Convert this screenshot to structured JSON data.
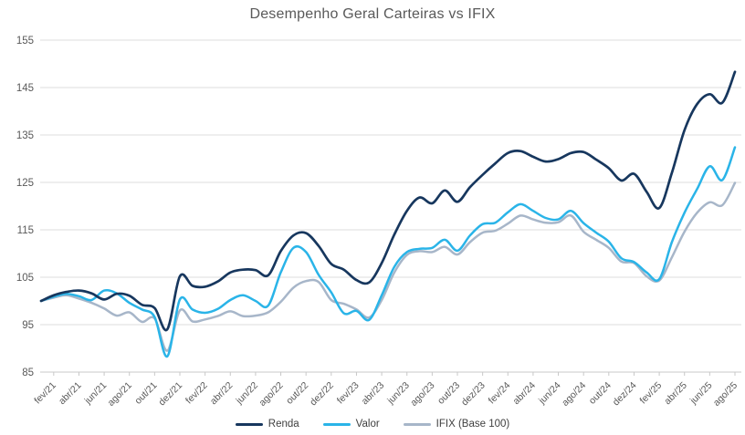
{
  "chart_data": {
    "type": "line",
    "title": "Desempenho Geral Carteiras vs IFIX",
    "xlabel": "",
    "ylabel": "",
    "ylim": [
      85,
      155
    ],
    "y_ticks": [
      85,
      95,
      105,
      115,
      125,
      135,
      145,
      155
    ],
    "grid": "horizontal",
    "legend_position": "bottom",
    "x_tick_start_index": 1,
    "x_tick_step": 2,
    "x_months": [
      "jan/21",
      "fev/21",
      "mar/21",
      "abr/21",
      "mai/21",
      "jun/21",
      "jul/21",
      "ago/21",
      "set/21",
      "out/21",
      "nov/21",
      "dez/21",
      "jan/22",
      "fev/22",
      "mar/22",
      "abr/22",
      "mai/22",
      "jun/22",
      "jul/22",
      "ago/22",
      "set/22",
      "out/22",
      "nov/22",
      "dez/22",
      "jan/23",
      "fev/23",
      "mar/23",
      "abr/23",
      "mai/23",
      "jun/23",
      "jul/23",
      "ago/23",
      "set/23",
      "out/23",
      "nov/23",
      "dez/23",
      "jan/24",
      "fev/24",
      "mar/24",
      "abr/24",
      "mai/24",
      "jun/24",
      "jul/24",
      "ago/24",
      "set/24",
      "out/24",
      "nov/24",
      "dez/24",
      "jan/25",
      "fev/25",
      "mar/25",
      "abr/25",
      "mai/25",
      "jun/25",
      "jul/25",
      "ago/25"
    ],
    "series": [
      {
        "name": "Renda",
        "color": "#17375E",
        "stroke_width": 2.7,
        "values": [
          100,
          101.2,
          101.9,
          102.2,
          101.6,
          100.3,
          101.5,
          101.1,
          99.2,
          98.5,
          94,
          105.2,
          103.2,
          103,
          104.1,
          106,
          106.6,
          106.5,
          105.4,
          110.5,
          113.8,
          114.3,
          111.6,
          107.8,
          106.6,
          104.4,
          103.9,
          108,
          114,
          119,
          121.8,
          120.6,
          123.3,
          120.9,
          124,
          126.6,
          129,
          131.2,
          131.6,
          130.4,
          129.4,
          129.9,
          131.2,
          131.4,
          129.8,
          128,
          125.4,
          126.8,
          123,
          119.6,
          127,
          136,
          141.5,
          143.6,
          141.8,
          148.3
        ]
      },
      {
        "name": "Valor",
        "color": "#2AB4E8",
        "stroke_width": 2.5,
        "values": [
          100,
          100.9,
          101.5,
          101,
          100.2,
          102.2,
          101.6,
          99.6,
          98.2,
          96.6,
          88.3,
          100.3,
          98.2,
          97.5,
          98.3,
          100.2,
          101.2,
          100,
          99,
          106,
          111.2,
          110.3,
          105.5,
          101.8,
          97.4,
          97.9,
          96,
          101.2,
          107.2,
          110.3,
          111,
          111.2,
          112.9,
          110.6,
          113.8,
          116.2,
          116.5,
          118.7,
          120.4,
          119,
          117.5,
          117.2,
          119,
          116.4,
          114.4,
          112.5,
          109,
          108.2,
          106,
          104.6,
          112.4,
          118.6,
          123.6,
          128.4,
          125.5,
          132.4
        ]
      },
      {
        "name": "IFIX (Base 100)",
        "color": "#A7B6C9",
        "stroke_width": 2.5,
        "values": [
          100,
          100.7,
          101.2,
          100.5,
          99.6,
          98.4,
          96.9,
          97.6,
          95.6,
          96.3,
          89.5,
          98,
          95.7,
          96.1,
          96.8,
          97.8,
          96.8,
          96.9,
          97.6,
          99.8,
          102.8,
          104.2,
          104,
          100.2,
          99.4,
          98.2,
          96.5,
          100.2,
          106,
          109.7,
          110.5,
          110.3,
          111.4,
          109.8,
          112.4,
          114.4,
          114.8,
          116.3,
          118,
          117.2,
          116.5,
          116.6,
          118,
          114.6,
          112.9,
          111.2,
          108.3,
          108,
          105.2,
          104.3,
          109.2,
          114.6,
          118.6,
          120.8,
          120.2,
          124.9
        ]
      }
    ]
  },
  "styles": {
    "background": "#FFFFFF",
    "grid_color": "#DCDCDC",
    "axis_color": "#C8C8C8",
    "axis_text_color": "#595959",
    "title_color": "#595959",
    "legend_text_color": "#3F3F3F"
  }
}
